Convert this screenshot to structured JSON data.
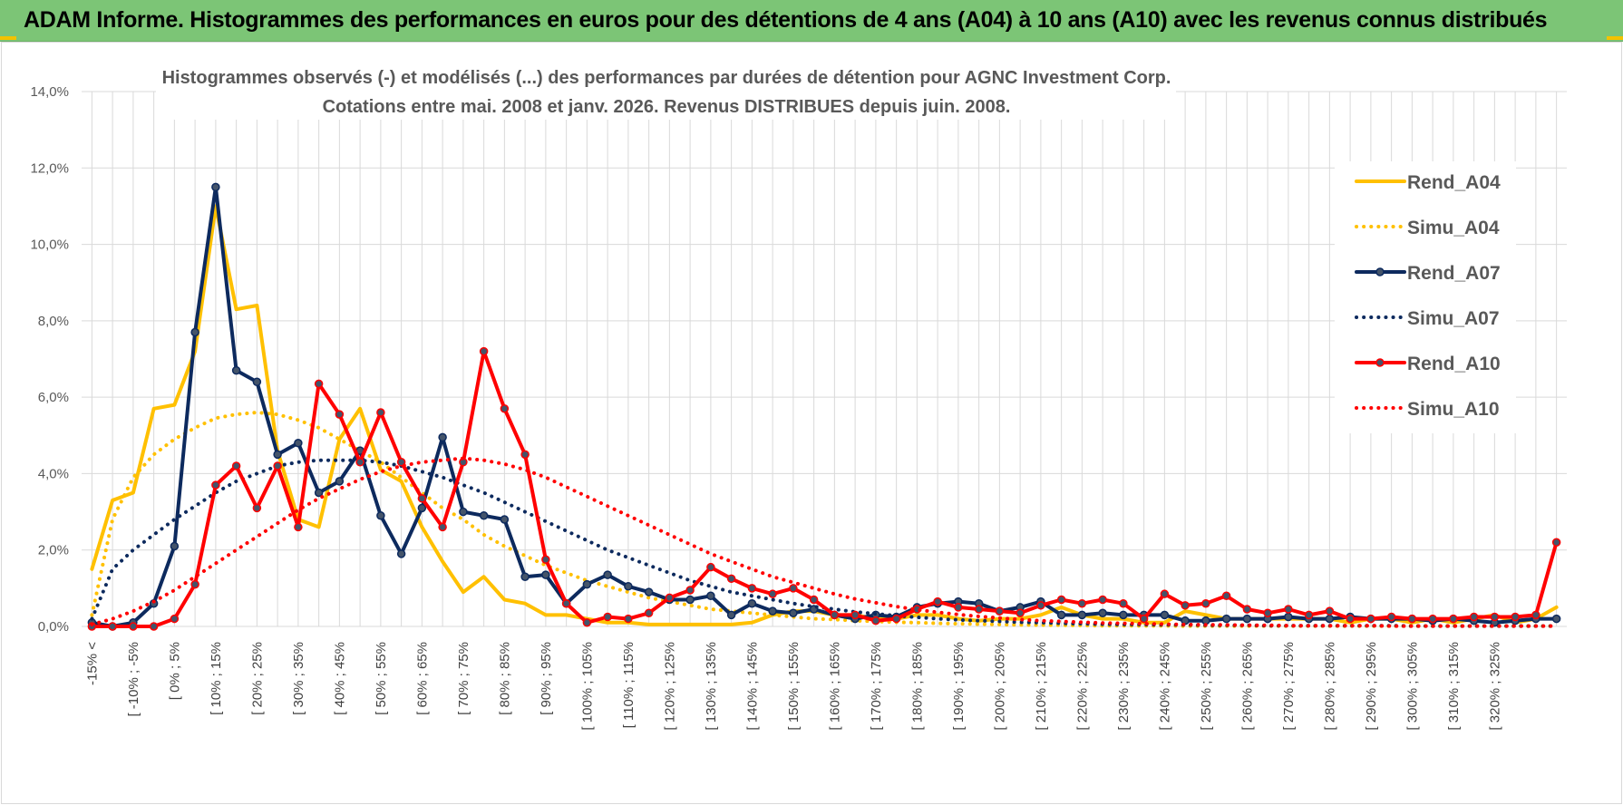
{
  "banner": {
    "title": "ADAM Informe. Histogrammes des performances en euros pour des détentions de 4 ans (A04) à 10 ans (A10) avec les revenus connus distribués"
  },
  "colors": {
    "banner_bg": "#7cc576",
    "A04": "#ffc000",
    "A07": "#0d2a5e",
    "A10": "#ff0000",
    "grid": "#d9d9d9"
  },
  "chart_data": {
    "type": "line",
    "title_line1": "Histogrammes observés (-) et modélisés (...) des performances par durées de détention pour AGNC Investment Corp.",
    "title_line2": "Cotations entre mai. 2008 et janv. 2026. Revenus DISTRIBUES depuis juin. 2008.",
    "ylim": [
      0,
      14
    ],
    "yticks": [
      "0,0%",
      "2,0%",
      "4,0%",
      "6,0%",
      "8,0%",
      "10,0%",
      "12,0%",
      "14,0%"
    ],
    "legend_position": "right",
    "x_tick_labels": [
      "-15% <",
      "[ -10% ; -5%",
      "[ 0% ; 5%",
      "[ 10% ; 15%",
      "[ 20% ; 25%",
      "[ 30% ; 35%",
      "[ 40% ; 45%",
      "[ 50% ; 55%",
      "[ 60% ; 65%",
      "[ 70% ; 75%",
      "[ 80% ; 85%",
      "[ 90% ; 95%",
      "[ 100% ; 105%",
      "[ 110% ; 115%",
      "[ 120% ; 125%",
      "[ 130% ; 135%",
      "[ 140% ; 145%",
      "[ 150% ; 155%",
      "[ 160% ; 165%",
      "[ 170% ; 175%",
      "[ 180% ; 185%",
      "[ 190% ; 195%",
      "[ 200% ; 205%",
      "[ 210% ; 215%",
      "[ 220% ; 225%",
      "[ 230% ; 235%",
      "[ 240% ; 245%",
      "[ 250% ; 255%",
      "[ 260% ; 265%",
      "[ 270% ; 275%",
      "[ 280% ; 285%",
      "[ 290% ; 295%",
      "[ 300% ; 305%",
      "[ 310% ; 315%",
      "[ 320% ; 325%"
    ],
    "series": [
      {
        "name": "Rend_A04",
        "style": "solid",
        "markers": false,
        "values": [
          1.5,
          3.3,
          3.5,
          5.7,
          5.8,
          7.2,
          11.0,
          8.3,
          8.4,
          4.6,
          2.8,
          2.6,
          4.9,
          5.7,
          4.1,
          3.8,
          2.6,
          1.7,
          0.9,
          1.3,
          0.7,
          0.6,
          0.3,
          0.3,
          0.2,
          0.1,
          0.1,
          0.05,
          0.05,
          0.05,
          0.05,
          0.05,
          0.1,
          0.3,
          0.4,
          0.4,
          0.3,
          0.3,
          0.2,
          0.2,
          0.3,
          0.3,
          0.2,
          0.15,
          0.2,
          0.2,
          0.3,
          0.5,
          0.3,
          0.2,
          0.2,
          0.1,
          0.1,
          0.4,
          0.3,
          0.2,
          0.2,
          0.2,
          0.2,
          0.2,
          0.2,
          0.1,
          0.2,
          0.2,
          0.1,
          0.2,
          0.1,
          0.2,
          0.3,
          0.1,
          0.2,
          0.5
        ]
      },
      {
        "name": "Simu_A04",
        "style": "dotted",
        "markers": false,
        "values": [
          0.3,
          2.8,
          3.9,
          4.5,
          4.9,
          5.2,
          5.45,
          5.55,
          5.6,
          5.55,
          5.4,
          5.2,
          4.9,
          4.6,
          4.3,
          3.9,
          3.5,
          3.1,
          2.8,
          2.4,
          2.1,
          1.85,
          1.6,
          1.4,
          1.2,
          1.05,
          0.9,
          0.75,
          0.65,
          0.55,
          0.45,
          0.4,
          0.35,
          0.3,
          0.25,
          0.2,
          0.18,
          0.15,
          0.13,
          0.11,
          0.1,
          0.08,
          0.07,
          0.06,
          0.05,
          0.04,
          0.035,
          0.03,
          0.025,
          0.02,
          0.02,
          0.015,
          0.015,
          0.01,
          0.01,
          0.01,
          0.01,
          0.01,
          0.01,
          0.01,
          0.01,
          0.01,
          0.01,
          0.01,
          0.01,
          0.01,
          0.01,
          0.01,
          0.01,
          0.01,
          0.01,
          0.01
        ]
      },
      {
        "name": "Rend_A07",
        "style": "solid",
        "markers": true,
        "values": [
          0.1,
          0.0,
          0.1,
          0.6,
          2.1,
          7.7,
          11.5,
          6.7,
          6.4,
          4.5,
          4.8,
          3.5,
          3.8,
          4.6,
          2.9,
          1.9,
          3.1,
          4.95,
          3.0,
          2.9,
          2.8,
          1.3,
          1.35,
          0.6,
          1.1,
          1.35,
          1.05,
          0.9,
          0.7,
          0.7,
          0.8,
          0.3,
          0.6,
          0.4,
          0.35,
          0.45,
          0.3,
          0.2,
          0.3,
          0.25,
          0.5,
          0.6,
          0.65,
          0.6,
          0.4,
          0.5,
          0.65,
          0.3,
          0.3,
          0.35,
          0.3,
          0.3,
          0.3,
          0.15,
          0.15,
          0.2,
          0.2,
          0.2,
          0.25,
          0.2,
          0.2,
          0.25,
          0.2,
          0.2,
          0.2,
          0.15,
          0.2,
          0.15,
          0.1,
          0.15,
          0.2,
          0.2
        ]
      },
      {
        "name": "Simu_A07",
        "style": "dotted",
        "markers": false,
        "values": [
          0.2,
          1.5,
          2.0,
          2.4,
          2.8,
          3.15,
          3.5,
          3.8,
          4.0,
          4.2,
          4.3,
          4.35,
          4.35,
          4.35,
          4.3,
          4.2,
          4.05,
          3.9,
          3.7,
          3.5,
          3.25,
          3.0,
          2.75,
          2.5,
          2.25,
          2.0,
          1.8,
          1.6,
          1.4,
          1.2,
          1.05,
          0.9,
          0.8,
          0.7,
          0.6,
          0.52,
          0.45,
          0.38,
          0.33,
          0.28,
          0.24,
          0.2,
          0.17,
          0.15,
          0.13,
          0.11,
          0.1,
          0.08,
          0.07,
          0.06,
          0.05,
          0.05,
          0.04,
          0.04,
          0.03,
          0.03,
          0.03,
          0.02,
          0.02,
          0.02,
          0.02,
          0.02,
          0.02,
          0.02,
          0.01,
          0.01,
          0.01,
          0.01,
          0.01,
          0.01,
          0.01,
          0.01
        ]
      },
      {
        "name": "Rend_A10",
        "style": "solid",
        "markers": true,
        "values": [
          0.0,
          0.0,
          0.0,
          0.0,
          0.2,
          1.1,
          3.7,
          4.2,
          3.1,
          4.2,
          2.6,
          6.35,
          5.55,
          4.3,
          5.6,
          4.3,
          3.35,
          2.6,
          4.3,
          7.2,
          5.7,
          4.5,
          1.75,
          0.6,
          0.1,
          0.25,
          0.2,
          0.35,
          0.75,
          0.95,
          1.55,
          1.25,
          1.0,
          0.85,
          1.0,
          0.7,
          0.3,
          0.3,
          0.15,
          0.2,
          0.45,
          0.65,
          0.5,
          0.45,
          0.4,
          0.35,
          0.55,
          0.7,
          0.6,
          0.7,
          0.6,
          0.2,
          0.85,
          0.55,
          0.6,
          0.8,
          0.45,
          0.35,
          0.45,
          0.3,
          0.4,
          0.2,
          0.2,
          0.25,
          0.2,
          0.2,
          0.2,
          0.25,
          0.25,
          0.25,
          0.3,
          2.2
        ]
      },
      {
        "name": "Simu_A10",
        "style": "dotted",
        "markers": false,
        "values": [
          0.05,
          0.2,
          0.4,
          0.65,
          0.95,
          1.3,
          1.65,
          2.0,
          2.35,
          2.7,
          3.05,
          3.35,
          3.6,
          3.85,
          4.05,
          4.2,
          4.3,
          4.35,
          4.4,
          4.35,
          4.25,
          4.1,
          3.9,
          3.65,
          3.4,
          3.15,
          2.9,
          2.65,
          2.4,
          2.15,
          1.9,
          1.7,
          1.5,
          1.3,
          1.15,
          1.0,
          0.85,
          0.72,
          0.62,
          0.52,
          0.44,
          0.37,
          0.31,
          0.26,
          0.22,
          0.18,
          0.15,
          0.13,
          0.11,
          0.09,
          0.08,
          0.07,
          0.06,
          0.05,
          0.04,
          0.04,
          0.03,
          0.03,
          0.02,
          0.02,
          0.02,
          0.02,
          0.02,
          0.01,
          0.01,
          0.01,
          0.01,
          0.01,
          0.01,
          0.01,
          0.01,
          0.01
        ]
      }
    ]
  }
}
